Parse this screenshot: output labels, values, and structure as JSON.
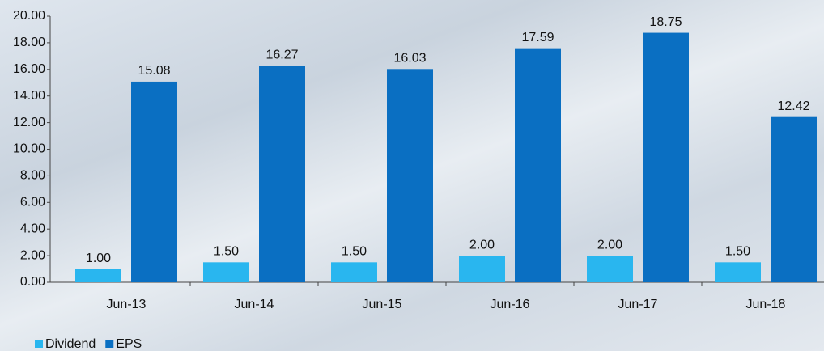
{
  "chart_data": {
    "type": "bar",
    "categories": [
      "Jun-13",
      "Jun-14",
      "Jun-15",
      "Jun-16",
      "Jun-17",
      "Jun-18"
    ],
    "series": [
      {
        "name": "Dividend",
        "color": "#29b6ef",
        "values": [
          1,
          1.5,
          1.5,
          2,
          2,
          1.5
        ],
        "value_labels": [
          "1.00",
          "1.50",
          "1.50",
          "2.00",
          "2.00",
          "1.50"
        ]
      },
      {
        "name": "EPS",
        "color": "#0a6fc2",
        "values": [
          15.08,
          16.27,
          16.03,
          17.59,
          18.75,
          12.42
        ]
      }
    ],
    "ylim": [
      0,
      20
    ],
    "yticks": [
      {
        "value": 0,
        "label": "0.00"
      },
      {
        "value": 2,
        "label": "2.00"
      },
      {
        "value": 4,
        "label": "4.00"
      },
      {
        "value": 6,
        "label": "6.00"
      },
      {
        "value": 8,
        "label": "8.00"
      },
      {
        "value": 10,
        "label": "10.00"
      },
      {
        "value": 12,
        "label": "12.00"
      },
      {
        "value": 14,
        "label": "14.00"
      },
      {
        "value": 16,
        "label": "16.00"
      },
      {
        "value": 18,
        "label": "18.00"
      },
      {
        "value": 20,
        "label": "20.00"
      }
    ],
    "legend": "bottom-left"
  }
}
